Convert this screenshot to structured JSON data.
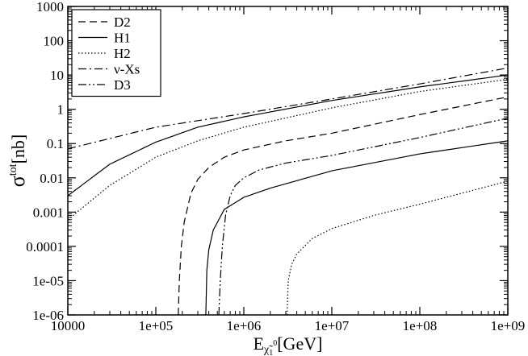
{
  "chart_data": {
    "type": "line",
    "xscale": "log",
    "yscale": "log",
    "xlim": [
      10000,
      1000000000
    ],
    "ylim": [
      1e-06,
      1000
    ],
    "x_ticks": [
      "10000",
      "1e+05",
      "1e+06",
      "1e+07",
      "1e+08",
      "1e+09"
    ],
    "y_ticks": [
      "1e-06",
      "1e-05",
      "0.0001",
      "0.001",
      "0.01",
      "0.1",
      "1",
      "10",
      "100",
      "1000"
    ],
    "xlabel": {
      "main": "E",
      "sub": "χ̃",
      "subsub": "1",
      "sup": "0",
      "unit": "[GeV]"
    },
    "ylabel": {
      "main": "σ",
      "sup": "tot",
      "unit": "[nb]"
    },
    "grid": false,
    "legend_position": "top-left",
    "series": [
      {
        "name": "D2",
        "dash": "dashed",
        "x": [
          180000,
          185000,
          195000,
          210000,
          250000,
          300000,
          400000,
          600000,
          1000000,
          3000000,
          10000000,
          100000000,
          1000000000
        ],
        "y": [
          1e-06,
          1e-05,
          0.0001,
          0.0005,
          0.0035,
          0.009,
          0.02,
          0.04,
          0.065,
          0.12,
          0.2,
          0.7,
          2.3
        ]
      },
      {
        "name": "H1",
        "dash": "solid",
        "x": [
          10000,
          30000,
          100000,
          300000,
          1000000,
          10000000,
          100000000,
          1000000000
        ],
        "y": [
          0.003,
          0.025,
          0.11,
          0.3,
          0.6,
          1.8,
          4.5,
          10
        ]
      },
      {
        "name": "H2",
        "dash": "dotted",
        "x": [
          10000,
          30000,
          100000,
          300000,
          1000000,
          10000000,
          100000000,
          1000000000
        ],
        "y": [
          0.0006,
          0.006,
          0.04,
          0.12,
          0.3,
          1.1,
          3.3,
          7.5
        ]
      },
      {
        "name": "ν-Xs",
        "dash": "dashdot",
        "x": [
          10000,
          100000,
          1000000,
          10000000,
          100000000,
          1000000000
        ],
        "y": [
          0.07,
          0.3,
          0.75,
          2.0,
          5.5,
          16
        ]
      },
      {
        "name": "D3",
        "dash": "dashdotdot",
        "x": [
          520000,
          540000,
          570000,
          620000,
          700000,
          800000,
          1000000,
          1500000,
          3000000,
          10000000,
          100000000,
          1000000000
        ],
        "y": [
          1e-06,
          1e-05,
          0.0001,
          0.0008,
          0.003,
          0.006,
          0.01,
          0.017,
          0.027,
          0.045,
          0.15,
          0.55
        ]
      },
      {
        "name": "",
        "dash": "solid",
        "x": [
          370000,
          380000,
          400000,
          450000,
          600000,
          1000000,
          2000000,
          10000000,
          100000000,
          1000000000
        ],
        "y": [
          1e-06,
          2e-05,
          8e-05,
          0.0003,
          0.0012,
          0.0027,
          0.005,
          0.016,
          0.05,
          0.12
        ]
      },
      {
        "name": "",
        "dash": "dotted",
        "x": [
          3100000,
          3200000,
          3500000,
          4000000,
          6000000,
          10000000,
          30000000,
          100000000,
          1000000000
        ],
        "y": [
          1e-06,
          1e-05,
          3e-05,
          6e-05,
          0.00017,
          0.00033,
          0.0008,
          0.0017,
          0.008
        ]
      }
    ]
  }
}
